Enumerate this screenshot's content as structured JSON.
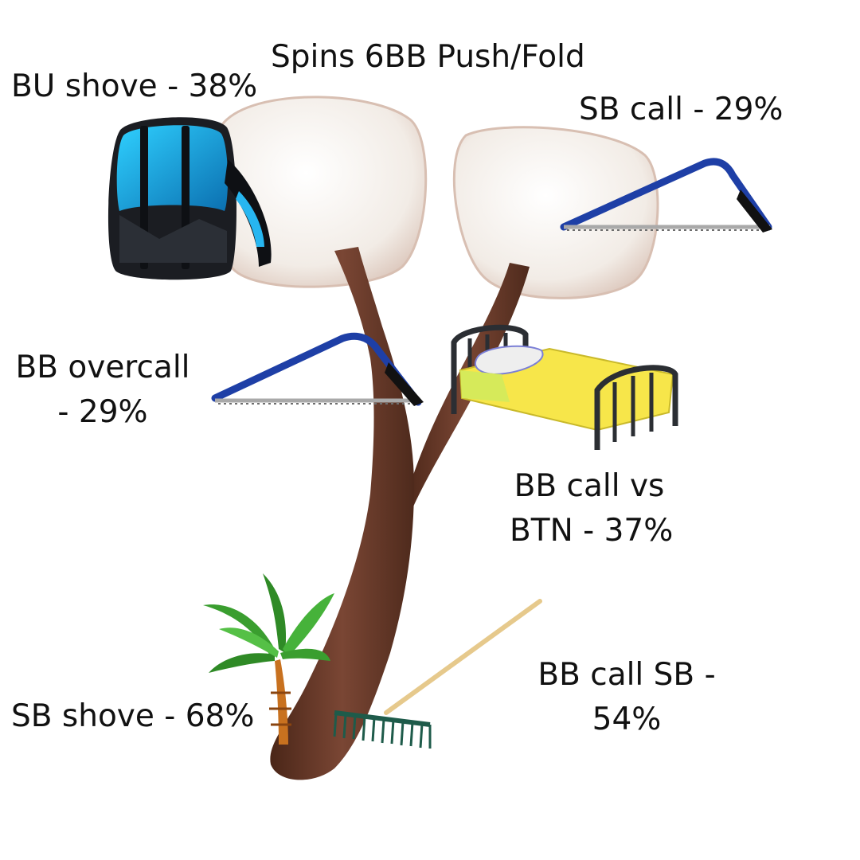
{
  "title": "Spins 6BB Push/Fold",
  "labels": {
    "bu_shove": "BU shove - 38%",
    "sb_call": "SB call - 29%",
    "bb_overcall_1": "BB overcall",
    "bb_overcall_2": "- 29%",
    "bb_call_btn_1": "BB call vs",
    "bb_call_btn_2": "BTN - 37%",
    "bb_call_sb_1": "BB call SB -",
    "bb_call_sb_2": "54%",
    "sb_shove": "SB shove - 68%"
  },
  "icons": [
    "tree-illustration",
    "backpack-icon",
    "saw-icon",
    "bed-icon",
    "palm-tree-icon",
    "rake-icon"
  ],
  "colors": {
    "trunk": "#6b3b2a",
    "canopy": "#f4efea",
    "backpack_accent": "#1aa9e6",
    "saw_frame": "#1e3fa6",
    "bed_blanket": "#f7e64a",
    "palm_leaf": "#3a9e2f",
    "rake": "#1e5b4a"
  }
}
